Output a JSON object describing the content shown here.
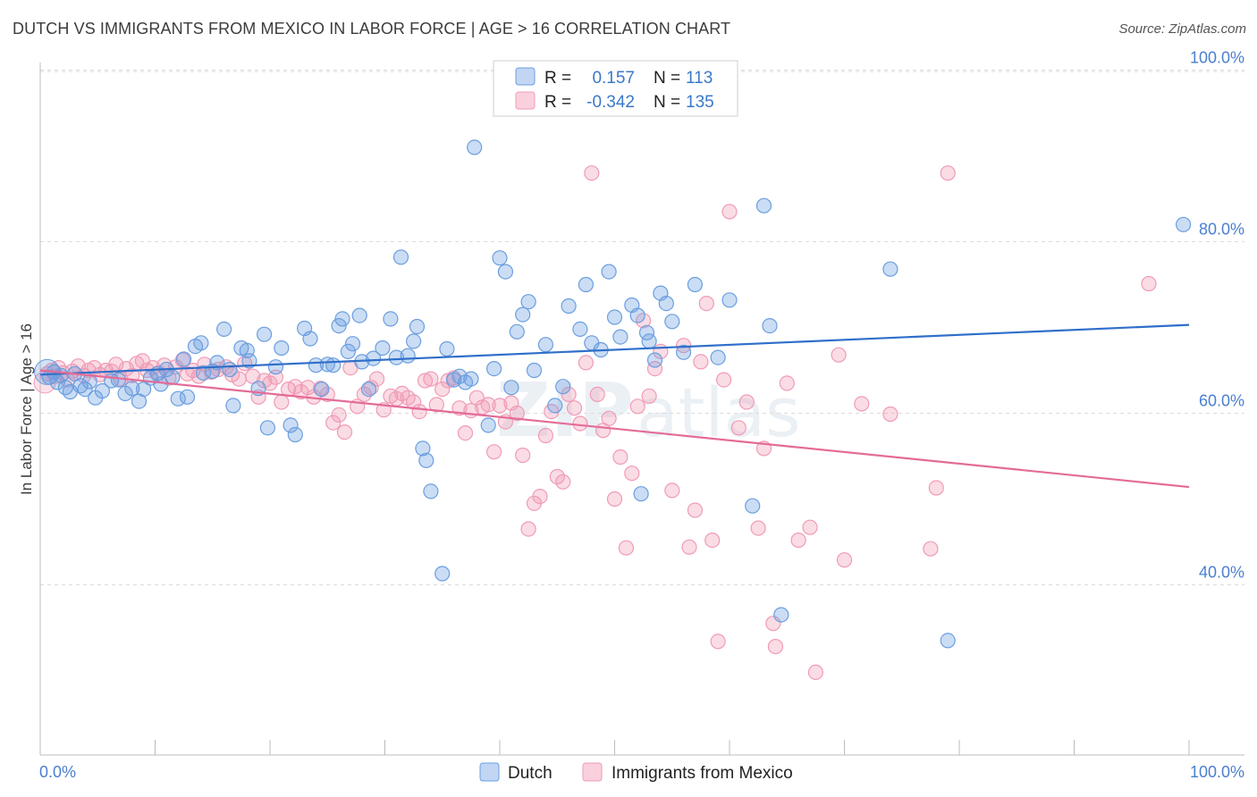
{
  "header": {
    "title": "DUTCH VS IMMIGRANTS FROM MEXICO IN LABOR FORCE | AGE > 16 CORRELATION CHART",
    "source": "Source: ZipAtlas.com"
  },
  "chart_data": {
    "type": "scatter",
    "ylabel": "In Labor Force | Age > 16",
    "xlim": [
      0,
      100
    ],
    "ylim": [
      20,
      100
    ],
    "x_tick_labels": [
      "0.0%",
      "100.0%"
    ],
    "y_ticks": [
      40,
      60,
      80,
      100
    ],
    "y_tick_labels": [
      "40.0%",
      "60.0%",
      "80.0%",
      "100.0%"
    ],
    "grid": "horizontal dashed",
    "legend": {
      "placement": "top-center",
      "rows": [
        {
          "r_label": "R =",
          "r_value": "0.157",
          "n_label": "N =",
          "n_value": "113"
        },
        {
          "r_label": "R =",
          "r_value": "-0.342",
          "n_label": "N =",
          "n_value": "135"
        }
      ]
    },
    "watermark": "ZIPatlas",
    "colors": {
      "dutch": "#6a9ee0",
      "mexico": "#f09bb5",
      "dutch_line": "#2f6fca",
      "mexico_line": "#e46b97"
    },
    "series": [
      {
        "name": "Dutch",
        "trend": {
          "x0": 0,
          "y0": 64.5,
          "x1": 100,
          "y1": 70.3
        },
        "points": [
          [
            0.8,
            64.2
          ],
          [
            1.2,
            64.8
          ],
          [
            1.5,
            63.6
          ],
          [
            1.8,
            64.4
          ],
          [
            2.2,
            63.0
          ],
          [
            2.6,
            62.5
          ],
          [
            3.0,
            64.6
          ],
          [
            3.5,
            63.2
          ],
          [
            3.9,
            62.8
          ],
          [
            4.3,
            63.7
          ],
          [
            4.8,
            61.8
          ],
          [
            5.4,
            62.6
          ],
          [
            6.2,
            63.8
          ],
          [
            6.8,
            63.9
          ],
          [
            7.4,
            62.3
          ],
          [
            8.0,
            62.9
          ],
          [
            8.6,
            61.4
          ],
          [
            9.0,
            62.8
          ],
          [
            9.6,
            64.1
          ],
          [
            10.2,
            64.6
          ],
          [
            10.5,
            63.4
          ],
          [
            11.0,
            65.1
          ],
          [
            11.5,
            64.2
          ],
          [
            12.0,
            61.7
          ],
          [
            12.5,
            66.3
          ],
          [
            12.8,
            61.9
          ],
          [
            13.5,
            67.8
          ],
          [
            14.0,
            68.2
          ],
          [
            14.2,
            64.7
          ],
          [
            15.0,
            64.9
          ],
          [
            15.4,
            65.9
          ],
          [
            16.0,
            69.8
          ],
          [
            16.5,
            65.1
          ],
          [
            16.8,
            60.9
          ],
          [
            17.5,
            67.6
          ],
          [
            18.0,
            67.3
          ],
          [
            18.2,
            66.1
          ],
          [
            19.0,
            62.9
          ],
          [
            19.5,
            69.2
          ],
          [
            19.8,
            58.3
          ],
          [
            20.5,
            65.4
          ],
          [
            21.0,
            67.6
          ],
          [
            21.8,
            58.6
          ],
          [
            22.2,
            57.5
          ],
          [
            23.0,
            69.9
          ],
          [
            23.5,
            68.7
          ],
          [
            24.0,
            65.6
          ],
          [
            24.5,
            62.8
          ],
          [
            25.0,
            65.7
          ],
          [
            25.5,
            65.6
          ],
          [
            26.0,
            70.2
          ],
          [
            26.3,
            71.0
          ],
          [
            26.8,
            67.2
          ],
          [
            27.2,
            68.1
          ],
          [
            27.8,
            71.4
          ],
          [
            28.0,
            66.0
          ],
          [
            28.6,
            62.8
          ],
          [
            29.0,
            66.4
          ],
          [
            29.8,
            67.6
          ],
          [
            30.5,
            71.0
          ],
          [
            31.0,
            66.5
          ],
          [
            31.4,
            78.2
          ],
          [
            32.0,
            66.7
          ],
          [
            32.5,
            68.4
          ],
          [
            32.8,
            70.1
          ],
          [
            33.3,
            55.9
          ],
          [
            33.6,
            54.5
          ],
          [
            34.0,
            50.9
          ],
          [
            35.0,
            41.3
          ],
          [
            35.4,
            67.5
          ],
          [
            36.0,
            63.9
          ],
          [
            36.5,
            64.3
          ],
          [
            37.0,
            63.6
          ],
          [
            37.5,
            64.0
          ],
          [
            37.8,
            91.0
          ],
          [
            39.0,
            58.6
          ],
          [
            39.5,
            65.2
          ],
          [
            40.0,
            78.1
          ],
          [
            40.5,
            76.5
          ],
          [
            41.0,
            63.0
          ],
          [
            41.5,
            69.5
          ],
          [
            42.0,
            71.5
          ],
          [
            42.5,
            73.0
          ],
          [
            43.0,
            65.0
          ],
          [
            44.0,
            68.0
          ],
          [
            44.8,
            60.9
          ],
          [
            45.5,
            63.1
          ],
          [
            46.0,
            72.5
          ],
          [
            47.0,
            69.8
          ],
          [
            47.5,
            75.0
          ],
          [
            48.0,
            68.2
          ],
          [
            48.8,
            67.4
          ],
          [
            49.5,
            76.5
          ],
          [
            50.0,
            71.2
          ],
          [
            50.5,
            68.9
          ],
          [
            51.5,
            72.6
          ],
          [
            52.0,
            71.4
          ],
          [
            52.3,
            50.6
          ],
          [
            52.8,
            69.4
          ],
          [
            53.0,
            68.4
          ],
          [
            53.5,
            66.2
          ],
          [
            54.0,
            74.0
          ],
          [
            54.5,
            72.8
          ],
          [
            55.0,
            70.7
          ],
          [
            56.0,
            67.1
          ],
          [
            57.0,
            75.0
          ],
          [
            59.0,
            66.5
          ],
          [
            60.0,
            73.2
          ],
          [
            62.0,
            49.2
          ],
          [
            63.0,
            84.2
          ],
          [
            63.5,
            70.2
          ],
          [
            64.5,
            36.5
          ],
          [
            74.0,
            76.8
          ],
          [
            79.0,
            33.5
          ],
          [
            99.5,
            82.0
          ]
        ]
      },
      {
        "name": "Immigrants from Mexico",
        "trend": {
          "x0": 0,
          "y0": 65.0,
          "x1": 100,
          "y1": 51.4
        },
        "points": [
          [
            0.6,
            64.6
          ],
          [
            1.0,
            65.0
          ],
          [
            1.3,
            64.3
          ],
          [
            1.6,
            65.3
          ],
          [
            2.0,
            64.7
          ],
          [
            2.4,
            63.9
          ],
          [
            2.8,
            64.9
          ],
          [
            3.3,
            65.5
          ],
          [
            3.8,
            64.4
          ],
          [
            4.2,
            65.0
          ],
          [
            4.7,
            65.3
          ],
          [
            5.2,
            64.5
          ],
          [
            5.7,
            65.0
          ],
          [
            6.2,
            64.9
          ],
          [
            6.6,
            65.7
          ],
          [
            7.0,
            64.0
          ],
          [
            7.5,
            65.2
          ],
          [
            8.0,
            64.4
          ],
          [
            8.4,
            65.8
          ],
          [
            8.9,
            66.1
          ],
          [
            9.3,
            65.0
          ],
          [
            9.8,
            65.3
          ],
          [
            10.3,
            64.7
          ],
          [
            10.8,
            65.6
          ],
          [
            11.2,
            64.1
          ],
          [
            11.8,
            65.4
          ],
          [
            12.4,
            66.2
          ],
          [
            12.8,
            64.6
          ],
          [
            13.3,
            65.0
          ],
          [
            13.8,
            64.3
          ],
          [
            14.3,
            65.7
          ],
          [
            14.9,
            64.8
          ],
          [
            15.5,
            65.1
          ],
          [
            16.2,
            65.4
          ],
          [
            16.7,
            64.5
          ],
          [
            17.3,
            64.0
          ],
          [
            17.8,
            65.8
          ],
          [
            18.5,
            64.3
          ],
          [
            19.0,
            61.9
          ],
          [
            19.5,
            63.8
          ],
          [
            20.0,
            63.5
          ],
          [
            20.5,
            64.2
          ],
          [
            21.0,
            61.3
          ],
          [
            21.6,
            62.8
          ],
          [
            22.2,
            63.1
          ],
          [
            22.7,
            62.5
          ],
          [
            23.3,
            63.0
          ],
          [
            23.8,
            61.9
          ],
          [
            24.4,
            62.9
          ],
          [
            25.0,
            62.2
          ],
          [
            25.5,
            58.9
          ],
          [
            26.0,
            59.8
          ],
          [
            26.5,
            57.8
          ],
          [
            27.0,
            65.3
          ],
          [
            27.6,
            60.8
          ],
          [
            28.2,
            62.2
          ],
          [
            28.8,
            63.0
          ],
          [
            29.3,
            64.0
          ],
          [
            29.9,
            60.4
          ],
          [
            30.5,
            62.0
          ],
          [
            31.0,
            61.7
          ],
          [
            31.5,
            62.3
          ],
          [
            32.0,
            61.8
          ],
          [
            32.5,
            61.3
          ],
          [
            33.0,
            60.2
          ],
          [
            33.5,
            63.8
          ],
          [
            34.0,
            64.0
          ],
          [
            34.5,
            61.0
          ],
          [
            35.0,
            62.8
          ],
          [
            35.5,
            63.8
          ],
          [
            36.0,
            64.1
          ],
          [
            36.5,
            60.6
          ],
          [
            37.0,
            57.7
          ],
          [
            37.5,
            60.3
          ],
          [
            38.0,
            61.8
          ],
          [
            38.5,
            60.7
          ],
          [
            39.0,
            61.0
          ],
          [
            39.5,
            55.5
          ],
          [
            40.0,
            60.9
          ],
          [
            40.5,
            59.0
          ],
          [
            41.0,
            61.2
          ],
          [
            41.5,
            60.0
          ],
          [
            42.0,
            55.1
          ],
          [
            42.5,
            46.5
          ],
          [
            43.0,
            49.5
          ],
          [
            43.5,
            50.3
          ],
          [
            44.0,
            57.4
          ],
          [
            44.5,
            60.2
          ],
          [
            45.0,
            52.6
          ],
          [
            45.5,
            52.0
          ],
          [
            46.0,
            62.2
          ],
          [
            46.5,
            60.6
          ],
          [
            47.0,
            58.8
          ],
          [
            47.5,
            65.9
          ],
          [
            48.0,
            88.0
          ],
          [
            48.5,
            62.2
          ],
          [
            49.0,
            58.0
          ],
          [
            49.5,
            59.4
          ],
          [
            50.0,
            50.0
          ],
          [
            50.5,
            54.9
          ],
          [
            51.0,
            44.3
          ],
          [
            51.5,
            53.0
          ],
          [
            52.0,
            60.8
          ],
          [
            52.5,
            70.8
          ],
          [
            53.0,
            62.0
          ],
          [
            53.5,
            65.2
          ],
          [
            54.0,
            67.2
          ],
          [
            55.0,
            51.0
          ],
          [
            56.0,
            67.9
          ],
          [
            56.5,
            44.4
          ],
          [
            57.0,
            48.7
          ],
          [
            57.5,
            66.0
          ],
          [
            58.0,
            72.8
          ],
          [
            58.5,
            45.2
          ],
          [
            59.0,
            33.4
          ],
          [
            59.5,
            63.9
          ],
          [
            60.0,
            83.5
          ],
          [
            60.8,
            58.3
          ],
          [
            61.5,
            61.3
          ],
          [
            62.5,
            46.6
          ],
          [
            63.0,
            55.9
          ],
          [
            63.8,
            35.5
          ],
          [
            64.0,
            32.8
          ],
          [
            65.0,
            63.5
          ],
          [
            66.0,
            45.2
          ],
          [
            67.0,
            46.7
          ],
          [
            67.5,
            29.8
          ],
          [
            69.5,
            66.8
          ],
          [
            70.0,
            42.9
          ],
          [
            71.5,
            61.1
          ],
          [
            74.0,
            59.9
          ],
          [
            77.5,
            44.2
          ],
          [
            78.0,
            51.3
          ],
          [
            79.0,
            88.0
          ],
          [
            96.5,
            75.1
          ]
        ]
      }
    ]
  },
  "bottom_legend": {
    "dutch_label": "Dutch",
    "mexico_label": "Immigrants from Mexico"
  }
}
